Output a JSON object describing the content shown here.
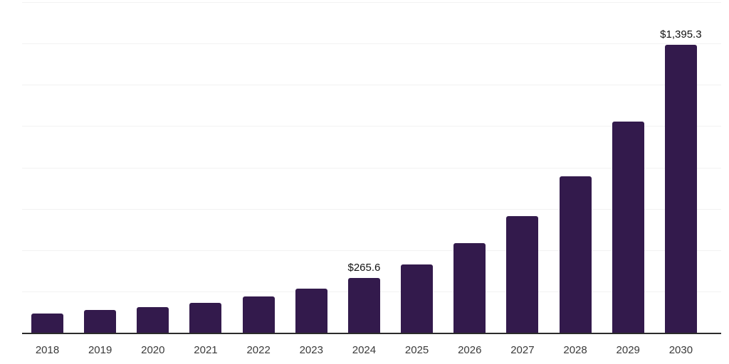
{
  "chart_data": {
    "type": "bar",
    "title": "",
    "xlabel": "",
    "ylabel": "",
    "categories": [
      "2018",
      "2019",
      "2020",
      "2021",
      "2022",
      "2023",
      "2024",
      "2025",
      "2026",
      "2027",
      "2028",
      "2029",
      "2030"
    ],
    "values": [
      93,
      110,
      123,
      144,
      175,
      212,
      265.6,
      332,
      435,
      565,
      757,
      1021,
      1395.3
    ],
    "data_labels": {
      "2024": "$265.6",
      "2030": "$1,395.3"
    },
    "ylim": [
      0,
      1600
    ],
    "grid": "horizontal",
    "gridline_count": 8,
    "grid_step": 200,
    "legend_position": "none",
    "y_axis_tick_labels": "none"
  },
  "style": {
    "bar_color": "#331a4c",
    "axis_line_color": "#2b2b2b",
    "gridline_color": "#f2f2f2",
    "data_label_color": "#111111",
    "tick_label_color": "#3a3a3a",
    "background_color": "#ffffff"
  }
}
